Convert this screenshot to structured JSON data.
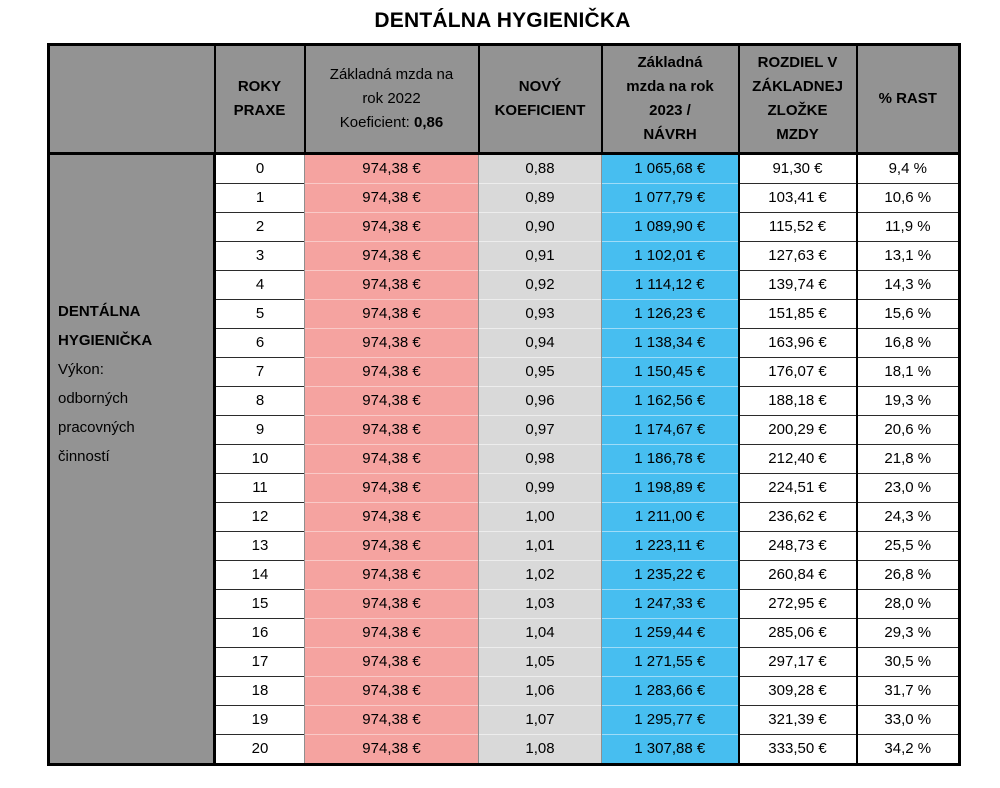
{
  "title": "DENTÁLNA HYGIENIČKA",
  "colors": {
    "header_gray": "#939393",
    "col_2022_pink": "#f5a3a0",
    "col_koef_gray": "#d9d9d9",
    "col_2023_blue": "#47bef0",
    "border_black": "#000000"
  },
  "table": {
    "row_label": {
      "title": "DENTÁLNA\nHYGIENIČKA",
      "subtitle": "Výkon:\nodborných\npracovných\nčinností"
    },
    "headers": {
      "blank": "",
      "roky_praxe": "ROKY\nPRAXE",
      "mzda_2022": {
        "text": "Základná mzda na\nrok 2022",
        "koef_label": "Koeficient:",
        "koef_value": "0,86"
      },
      "novy_koeficient": "NOVÝ\nKOEFICIENT",
      "mzda_2023": "Základná\nmzda na rok\n2023  /\nNÁVRH",
      "rozdiel": "ROZDIEL V\nZÁKLADNEJ\nZLOŽKE\nMZDY",
      "rast": "% RAST"
    },
    "rows": [
      {
        "roky": "0",
        "mzda_2022": "974,38 €",
        "novy_koeficient": "0,88",
        "mzda_2023": "1 065,68 €",
        "rozdiel": "91,30 €",
        "rast": "9,4 %"
      },
      {
        "roky": "1",
        "mzda_2022": "974,38 €",
        "novy_koeficient": "0,89",
        "mzda_2023": "1 077,79 €",
        "rozdiel": "103,41 €",
        "rast": "10,6 %"
      },
      {
        "roky": "2",
        "mzda_2022": "974,38 €",
        "novy_koeficient": "0,90",
        "mzda_2023": "1 089,90 €",
        "rozdiel": "115,52 €",
        "rast": "11,9 %"
      },
      {
        "roky": "3",
        "mzda_2022": "974,38 €",
        "novy_koeficient": "0,91",
        "mzda_2023": "1 102,01 €",
        "rozdiel": "127,63 €",
        "rast": "13,1 %"
      },
      {
        "roky": "4",
        "mzda_2022": "974,38 €",
        "novy_koeficient": "0,92",
        "mzda_2023": "1 114,12 €",
        "rozdiel": "139,74 €",
        "rast": "14,3 %"
      },
      {
        "roky": "5",
        "mzda_2022": "974,38 €",
        "novy_koeficient": "0,93",
        "mzda_2023": "1 126,23 €",
        "rozdiel": "151,85 €",
        "rast": "15,6 %"
      },
      {
        "roky": "6",
        "mzda_2022": "974,38 €",
        "novy_koeficient": "0,94",
        "mzda_2023": "1 138,34 €",
        "rozdiel": "163,96 €",
        "rast": "16,8 %"
      },
      {
        "roky": "7",
        "mzda_2022": "974,38 €",
        "novy_koeficient": "0,95",
        "mzda_2023": "1 150,45 €",
        "rozdiel": "176,07 €",
        "rast": "18,1 %"
      },
      {
        "roky": "8",
        "mzda_2022": "974,38 €",
        "novy_koeficient": "0,96",
        "mzda_2023": "1 162,56 €",
        "rozdiel": "188,18 €",
        "rast": "19,3 %"
      },
      {
        "roky": "9",
        "mzda_2022": "974,38 €",
        "novy_koeficient": "0,97",
        "mzda_2023": "1 174,67 €",
        "rozdiel": "200,29 €",
        "rast": "20,6 %"
      },
      {
        "roky": "10",
        "mzda_2022": "974,38 €",
        "novy_koeficient": "0,98",
        "mzda_2023": "1 186,78 €",
        "rozdiel": "212,40 €",
        "rast": "21,8 %"
      },
      {
        "roky": "11",
        "mzda_2022": "974,38 €",
        "novy_koeficient": "0,99",
        "mzda_2023": "1 198,89 €",
        "rozdiel": "224,51 €",
        "rast": "23,0 %"
      },
      {
        "roky": "12",
        "mzda_2022": "974,38 €",
        "novy_koeficient": "1,00",
        "mzda_2023": "1 211,00 €",
        "rozdiel": "236,62 €",
        "rast": "24,3 %"
      },
      {
        "roky": "13",
        "mzda_2022": "974,38 €",
        "novy_koeficient": "1,01",
        "mzda_2023": "1 223,11 €",
        "rozdiel": "248,73 €",
        "rast": "25,5 %"
      },
      {
        "roky": "14",
        "mzda_2022": "974,38 €",
        "novy_koeficient": "1,02",
        "mzda_2023": "1 235,22 €",
        "rozdiel": "260,84 €",
        "rast": "26,8 %"
      },
      {
        "roky": "15",
        "mzda_2022": "974,38 €",
        "novy_koeficient": "1,03",
        "mzda_2023": "1 247,33 €",
        "rozdiel": "272,95 €",
        "rast": "28,0 %"
      },
      {
        "roky": "16",
        "mzda_2022": "974,38 €",
        "novy_koeficient": "1,04",
        "mzda_2023": "1 259,44 €",
        "rozdiel": "285,06 €",
        "rast": "29,3 %"
      },
      {
        "roky": "17",
        "mzda_2022": "974,38 €",
        "novy_koeficient": "1,05",
        "mzda_2023": "1 271,55 €",
        "rozdiel": "297,17 €",
        "rast": "30,5 %"
      },
      {
        "roky": "18",
        "mzda_2022": "974,38 €",
        "novy_koeficient": "1,06",
        "mzda_2023": "1 283,66 €",
        "rozdiel": "309,28 €",
        "rast": "31,7 %"
      },
      {
        "roky": "19",
        "mzda_2022": "974,38 €",
        "novy_koeficient": "1,07",
        "mzda_2023": "1 295,77 €",
        "rozdiel": "321,39 €",
        "rast": "33,0 %"
      },
      {
        "roky": "20",
        "mzda_2022": "974,38 €",
        "novy_koeficient": "1,08",
        "mzda_2023": "1 307,88 €",
        "rozdiel": "333,50 €",
        "rast": "34,2 %"
      }
    ]
  }
}
